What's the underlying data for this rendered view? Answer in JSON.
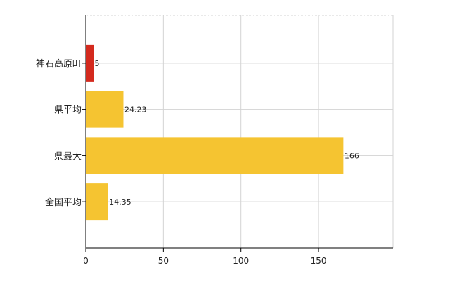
{
  "chart_data": {
    "type": "bar",
    "orientation": "horizontal",
    "categories": [
      "神石高原町",
      "県平均",
      "県最大",
      "全国平均"
    ],
    "values": [
      5,
      24.23,
      166,
      14.35
    ],
    "data_labels": [
      "5",
      "24.23",
      "166",
      "14.35"
    ],
    "xlim": [
      0,
      198
    ],
    "xticks": [
      0,
      50,
      100,
      150
    ],
    "xtick_labels": [
      "0",
      "50",
      "100",
      "150"
    ],
    "grid": true,
    "legend": "none",
    "colors": {
      "highlight": "#d42a1e",
      "default": "#f5c431",
      "grid": "#d3d3d3",
      "axis": "#000000"
    },
    "highlight_index": 0
  }
}
